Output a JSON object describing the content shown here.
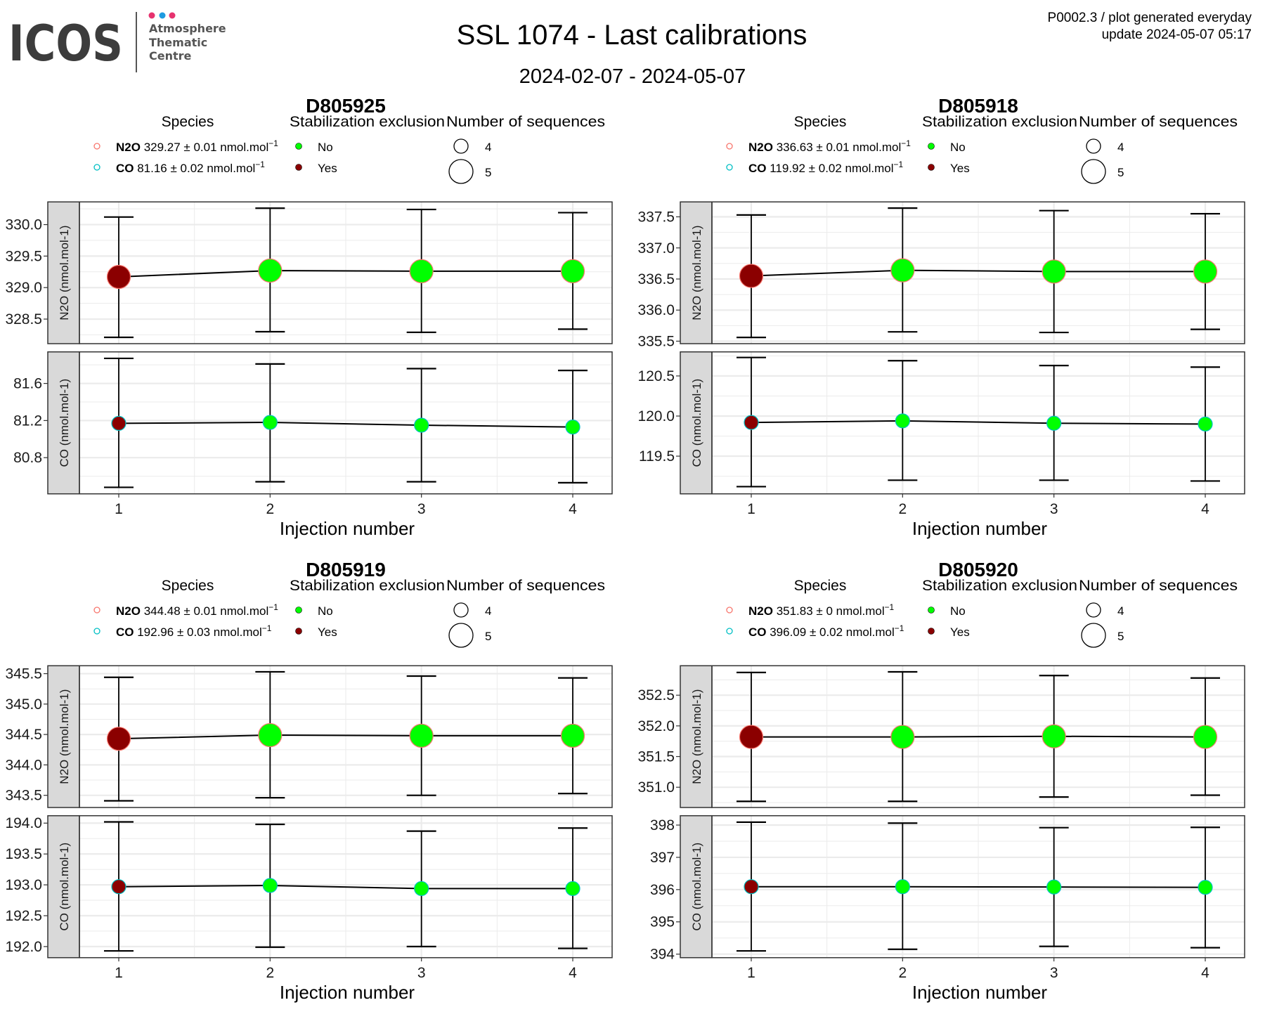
{
  "logo": {
    "text": "ICOS",
    "lines": [
      "Atmosphere",
      "Thematic",
      "Centre"
    ],
    "dot_colors": [
      "#e6336f",
      "#1e9be0",
      "#e6336f"
    ]
  },
  "header": {
    "title": "SSL 1074 - Last calibrations",
    "date_range": "2024-02-07 - 2024-05-07",
    "meta_line1": "P0002.3 / plot generated everyday",
    "meta_line2": "update  2024-05-07 05:17"
  },
  "legend_titles": {
    "species": "Species",
    "stabilization": "Stabilization exclusion",
    "sequences": "Number of sequences"
  },
  "colors": {
    "n2o_outline": "#F8766D",
    "co_outline": "#00BFC4",
    "stab_no": "#00FF00",
    "stab_yes": "#8B0000",
    "strip_fill": "#D9D9D9",
    "grid": "#EBEBEB"
  },
  "chart_data": [
    {
      "type": "scatter",
      "title": "D805925",
      "xlabel": "Injection number",
      "x": [
        1,
        2,
        3,
        4
      ],
      "xticks": [
        "1",
        "2",
        "3",
        "4"
      ],
      "xlim": [
        0.74,
        4.26
      ],
      "legend": {
        "species": [
          {
            "formula": "N2O",
            "value": "329.27",
            "pm": "±",
            "uncertainty": "0.01",
            "unit": "nmol.mol",
            "unit_exp": "-1"
          },
          {
            "formula": "CO",
            "value": "81.16",
            "pm": "±",
            "uncertainty": "0.02",
            "unit": "nmol.mol",
            "unit_exp": "-1"
          }
        ],
        "stabilization": [
          "No",
          "Yes"
        ],
        "sequences": [
          "4",
          "5"
        ]
      },
      "facets": [
        {
          "species": "N2O",
          "strip": "N2O (nmol.mol-1)",
          "ylim": [
            328.11,
            330.36
          ],
          "yticks": [
            "328.5",
            "329.0",
            "329.5",
            "330.0"
          ],
          "mean": [
            329.17,
            329.27,
            329.26,
            329.26
          ],
          "err_low": [
            328.21,
            328.3,
            328.29,
            328.34
          ],
          "err_high": [
            330.12,
            330.26,
            330.24,
            330.19
          ],
          "stabilization_excluded": [
            "Yes",
            "No",
            "No",
            "No"
          ],
          "n_sequences": 5
        },
        {
          "species": "CO",
          "strip": "CO (nmol.mol-1)",
          "ylim": [
            80.41,
            81.94
          ],
          "yticks": [
            "80.8",
            "81.2",
            "81.6"
          ],
          "mean": [
            81.17,
            81.18,
            81.15,
            81.13
          ],
          "err_low": [
            80.48,
            80.54,
            80.54,
            80.53
          ],
          "err_high": [
            81.87,
            81.81,
            81.76,
            81.74
          ],
          "stabilization_excluded": [
            "Yes",
            "No",
            "No",
            "No"
          ],
          "n_sequences": 4
        }
      ]
    },
    {
      "type": "scatter",
      "title": "D805918",
      "xlabel": "Injection number",
      "x": [
        1,
        2,
        3,
        4
      ],
      "xticks": [
        "1",
        "2",
        "3",
        "4"
      ],
      "xlim": [
        0.74,
        4.26
      ],
      "legend": {
        "species": [
          {
            "formula": "N2O",
            "value": "336.63",
            "pm": "±",
            "uncertainty": "0.01",
            "unit": "nmol.mol",
            "unit_exp": "-1"
          },
          {
            "formula": "CO",
            "value": "119.92",
            "pm": "±",
            "uncertainty": "0.02",
            "unit": "nmol.mol",
            "unit_exp": "-1"
          }
        ],
        "stabilization": [
          "No",
          "Yes"
        ],
        "sequences": [
          "4",
          "5"
        ]
      },
      "facets": [
        {
          "species": "N2O",
          "strip": "N2O (nmol.mol-1)",
          "ylim": [
            335.46,
            337.74
          ],
          "yticks": [
            "335.5",
            "336.0",
            "336.5",
            "337.0",
            "337.5"
          ],
          "mean": [
            336.55,
            336.64,
            336.62,
            336.62
          ],
          "err_low": [
            335.56,
            335.65,
            335.64,
            335.69
          ],
          "err_high": [
            337.53,
            337.64,
            337.6,
            337.55
          ],
          "stabilization_excluded": [
            "Yes",
            "No",
            "No",
            "No"
          ],
          "n_sequences": 5
        },
        {
          "species": "CO",
          "strip": "CO (nmol.mol-1)",
          "ylim": [
            119.03,
            120.8
          ],
          "yticks": [
            "119.5",
            "120.0",
            "120.5"
          ],
          "mean": [
            119.92,
            119.94,
            119.91,
            119.9
          ],
          "err_low": [
            119.12,
            119.2,
            119.2,
            119.19
          ],
          "err_high": [
            120.73,
            120.69,
            120.63,
            120.61
          ],
          "stabilization_excluded": [
            "Yes",
            "No",
            "No",
            "No"
          ],
          "n_sequences": 4
        }
      ]
    },
    {
      "type": "scatter",
      "title": "D805919",
      "xlabel": "Injection number",
      "x": [
        1,
        2,
        3,
        4
      ],
      "xticks": [
        "1",
        "2",
        "3",
        "4"
      ],
      "xlim": [
        0.74,
        4.26
      ],
      "legend": {
        "species": [
          {
            "formula": "N2O",
            "value": "344.48",
            "pm": "±",
            "uncertainty": "0.01",
            "unit": "nmol.mol",
            "unit_exp": "-1"
          },
          {
            "formula": "CO",
            "value": "192.96",
            "pm": "±",
            "uncertainty": "0.03",
            "unit": "nmol.mol",
            "unit_exp": "-1"
          }
        ],
        "stabilization": [
          "No",
          "Yes"
        ],
        "sequences": [
          "4",
          "5"
        ]
      },
      "facets": [
        {
          "species": "N2O",
          "strip": "N2O (nmol.mol-1)",
          "ylim": [
            343.3,
            345.63
          ],
          "yticks": [
            "343.5",
            "344.0",
            "344.5",
            "345.0",
            "345.5"
          ],
          "mean": [
            344.43,
            344.49,
            344.48,
            344.48
          ],
          "err_low": [
            343.41,
            343.46,
            343.5,
            343.53
          ],
          "err_high": [
            345.44,
            345.53,
            345.46,
            345.43
          ],
          "stabilization_excluded": [
            "Yes",
            "No",
            "No",
            "No"
          ],
          "n_sequences": 5
        },
        {
          "species": "CO",
          "strip": "CO (nmol.mol-1)",
          "ylim": [
            191.82,
            194.12
          ],
          "yticks": [
            "192.0",
            "192.5",
            "193.0",
            "193.5",
            "194.0"
          ],
          "mean": [
            192.97,
            192.99,
            192.94,
            192.94
          ],
          "err_low": [
            191.93,
            191.99,
            192.0,
            191.97
          ],
          "err_high": [
            194.02,
            193.98,
            193.87,
            193.92
          ],
          "stabilization_excluded": [
            "Yes",
            "No",
            "No",
            "No"
          ],
          "n_sequences": 4
        }
      ]
    },
    {
      "type": "scatter",
      "title": "D805920",
      "xlabel": "Injection number",
      "x": [
        1,
        2,
        3,
        4
      ],
      "xticks": [
        "1",
        "2",
        "3",
        "4"
      ],
      "xlim": [
        0.74,
        4.26
      ],
      "legend": {
        "species": [
          {
            "formula": "N2O",
            "value": "351.83",
            "pm": "±",
            "uncertainty": "0",
            "unit": "nmol.mol",
            "unit_exp": "-1"
          },
          {
            "formula": "CO",
            "value": "396.09",
            "pm": "±",
            "uncertainty": "0.02",
            "unit": "nmol.mol",
            "unit_exp": "-1"
          }
        ],
        "stabilization": [
          "No",
          "Yes"
        ],
        "sequences": [
          "4",
          "5"
        ]
      },
      "facets": [
        {
          "species": "N2O",
          "strip": "N2O (nmol.mol-1)",
          "ylim": [
            350.67,
            352.98
          ],
          "yticks": [
            "351.0",
            "351.5",
            "352.0",
            "352.5"
          ],
          "mean": [
            351.82,
            351.82,
            351.83,
            351.82
          ],
          "err_low": [
            350.77,
            350.77,
            350.84,
            350.87
          ],
          "err_high": [
            352.87,
            352.88,
            352.82,
            352.78
          ],
          "stabilization_excluded": [
            "Yes",
            "No",
            "No",
            "No"
          ],
          "n_sequences": 5
        },
        {
          "species": "CO",
          "strip": "CO (nmol.mol-1)",
          "ylim": [
            393.89,
            398.29
          ],
          "yticks": [
            "394",
            "395",
            "396",
            "397",
            "398"
          ],
          "mean": [
            396.09,
            396.09,
            396.08,
            396.07
          ],
          "err_low": [
            394.1,
            394.15,
            394.24,
            394.2
          ],
          "err_high": [
            398.09,
            398.06,
            397.92,
            397.93
          ],
          "stabilization_excluded": [
            "Yes",
            "No",
            "No",
            "No"
          ],
          "n_sequences": 4
        }
      ]
    }
  ]
}
